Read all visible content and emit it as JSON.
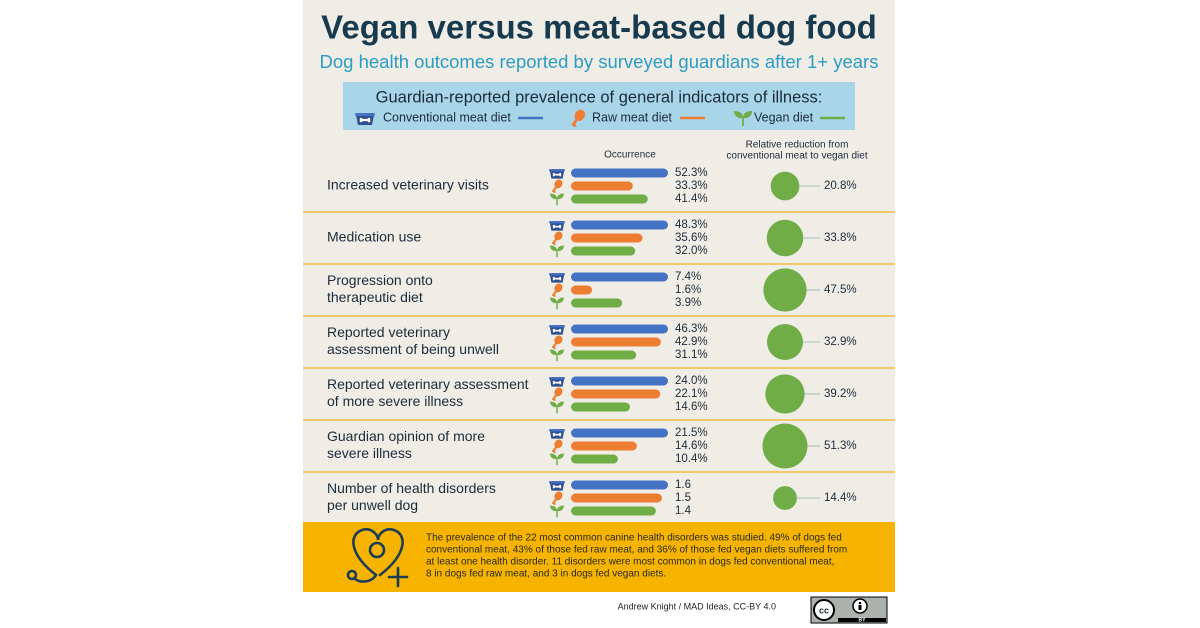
{
  "chart_data": {
    "type": "bar",
    "title": "Vegan versus meat-based dog food",
    "subtitle": "Dog health outcomes reported by surveyed guardians after 1+ years",
    "legend_title": "Guardian-reported prevalence of general indicators of illness:",
    "occurrence_label": "Occurrence",
    "reduction_label": [
      "Relative reduction from",
      "conventional meat to vegan diet"
    ],
    "categories": [
      [
        "Increased veterinary visits"
      ],
      [
        "Medication use"
      ],
      [
        "Progression onto",
        "therapeutic diet"
      ],
      [
        "Reported veterinary",
        "assessment of being unwell"
      ],
      [
        "Reported veterinary assessment",
        "of more severe illness"
      ],
      [
        "Guardian opinion of more",
        "severe illness"
      ],
      [
        "Number of health disorders",
        "per unwell dog"
      ]
    ],
    "series": [
      {
        "name": "Conventional meat diet",
        "color": "#4472c4",
        "values": [
          52.3,
          48.3,
          7.4,
          46.3,
          24.0,
          21.5,
          1.6
        ],
        "value_labels": [
          "52.3%",
          "48.3%",
          "7.4%",
          "46.3%",
          "24.0%",
          "21.5%",
          "1.6"
        ]
      },
      {
        "name": "Raw meat diet",
        "color": "#ed7d31",
        "values": [
          33.3,
          35.6,
          1.6,
          42.9,
          22.1,
          14.6,
          1.5
        ],
        "value_labels": [
          "33.3%",
          "35.6%",
          "1.6%",
          "42.9%",
          "22.1%",
          "14.6%",
          "1.5"
        ]
      },
      {
        "name": "Vegan diet",
        "color": "#70ad47",
        "values": [
          41.4,
          32.0,
          3.9,
          31.1,
          14.6,
          10.4,
          1.4
        ],
        "value_labels": [
          "41.4%",
          "32.0%",
          "3.9%",
          "31.1%",
          "14.6%",
          "10.4%",
          "1.4"
        ]
      }
    ],
    "reduction": {
      "color": "#70ad47",
      "values": [
        20.8,
        33.8,
        47.5,
        32.9,
        39.2,
        51.3,
        14.4
      ],
      "value_labels": [
        "20.8%",
        "33.8%",
        "47.5%",
        "32.9%",
        "39.2%",
        "51.3%",
        "14.4%"
      ]
    },
    "note": [
      "The prevalence of the 22 most common canine health disorders was studied. 49% of dogs fed",
      "conventional meat, 43% of those fed raw meat, and 36% of those fed vegan diets suffered from",
      "at least one health disorder. 11 disorders were most common in dogs fed conventional meat,",
      "8 in dogs fed raw meat, and 3 in dogs fed vegan diets."
    ],
    "credit": "Andrew Knight / MAD Ideas, CC-BY 4.0",
    "license_badge": "BY"
  }
}
